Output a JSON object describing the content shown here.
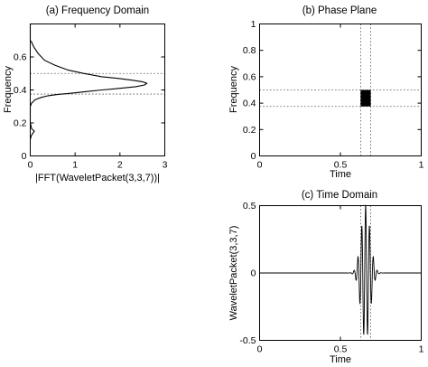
{
  "chart_data": [
    {
      "type": "line",
      "title": "(a) Frequency Domain",
      "xlabel": "|FFT(WaveletPacket(3,3,7))|",
      "ylabel": "Frequency",
      "xlim": [
        0,
        3
      ],
      "ylim": [
        0,
        0.8
      ],
      "xticks": [
        "0",
        "1",
        "2",
        "3"
      ],
      "yticks": [
        "0",
        "0.2",
        "0.4",
        "0.6"
      ],
      "grid": false,
      "reference_lines": {
        "y": [
          0.375,
          0.5
        ]
      },
      "series": [
        {
          "x": [
            0,
            0.02,
            0.05,
            0.09,
            0.03,
            0.02,
            0,
            0,
            0,
            0.03,
            0.07,
            0.1,
            0.15,
            0.25,
            0.4,
            0.6,
            0.9,
            1.25,
            1.6,
            2.0,
            2.35,
            2.55,
            2.6,
            2.5,
            2.25,
            1.95,
            1.6,
            1.2,
            0.85,
            0.55,
            0.32,
            0.18,
            0.08,
            0.03,
            0,
            0
          ],
          "y": [
            0.1,
            0.12,
            0.135,
            0.15,
            0.165,
            0.18,
            0.2,
            0.25,
            0.3,
            0.32,
            0.33,
            0.34,
            0.345,
            0.355,
            0.365,
            0.372,
            0.38,
            0.39,
            0.4,
            0.41,
            0.42,
            0.43,
            0.44,
            0.45,
            0.46,
            0.47,
            0.48,
            0.5,
            0.52,
            0.55,
            0.58,
            0.62,
            0.66,
            0.69,
            0.7,
            0.8
          ]
        }
      ]
    },
    {
      "type": "heatmap",
      "title": "(b) Phase Plane",
      "xlabel": "Time",
      "ylabel": "Frequency",
      "xlim": [
        0,
        1
      ],
      "ylim": [
        0,
        1
      ],
      "xticks": [
        "0",
        "0.5",
        "1"
      ],
      "yticks": [
        "0",
        "0.2",
        "0.4",
        "0.6",
        "0.8",
        "1"
      ],
      "grid": false,
      "reference_lines": {
        "x": [
          0.625,
          0.6875
        ],
        "y": [
          0.375,
          0.5
        ]
      },
      "tile": {
        "time": [
          0.625,
          0.6875
        ],
        "frequency": [
          0.375,
          0.5
        ],
        "color": "#000000"
      }
    },
    {
      "type": "line",
      "title": "(c) Time Domain",
      "xlabel": "Time",
      "ylabel": "WaveletPacket(3,3,7)",
      "xlim": [
        0,
        1
      ],
      "ylim": [
        -0.5,
        0.5
      ],
      "xticks": [
        "0",
        "0.5",
        "1"
      ],
      "yticks": [
        "-0.5",
        "0",
        "0.5"
      ],
      "grid": false,
      "reference_lines": {
        "x": [
          0.625,
          0.6875
        ]
      },
      "wavelet": {
        "center": 0.656,
        "amplitude": 0.5,
        "frequency": 42,
        "envelope_width": 0.028,
        "visible_extent": [
          0.4,
          0.95
        ]
      }
    }
  ]
}
